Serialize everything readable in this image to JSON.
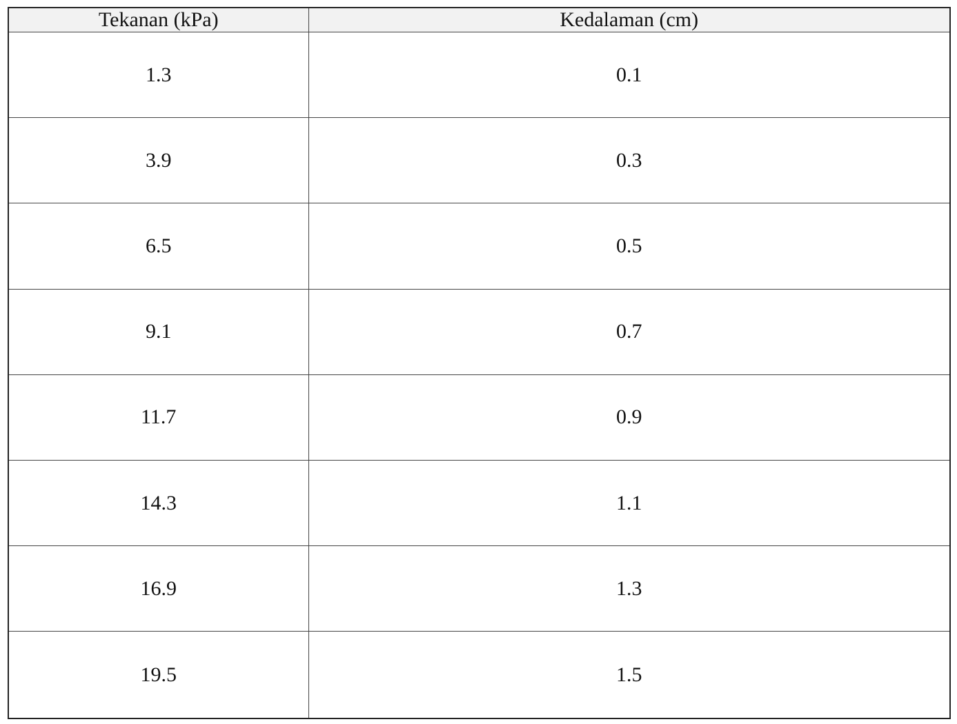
{
  "table": {
    "header": [
      "Tekanan (kPa)",
      "Kedalaman (cm)"
    ],
    "rows": [
      [
        "1.3",
        "0.1"
      ],
      [
        "3.9",
        "0.3"
      ],
      [
        "6.5",
        "0.5"
      ],
      [
        "9.1",
        "0.7"
      ],
      [
        "11.7",
        "0.9"
      ],
      [
        "14.3",
        "1.1"
      ],
      [
        "16.9",
        "1.3"
      ],
      [
        "19.5",
        "1.5"
      ]
    ]
  }
}
